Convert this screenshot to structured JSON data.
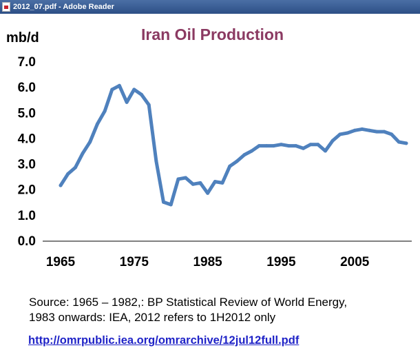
{
  "window": {
    "title": "2012_07.pdf - Adobe Reader"
  },
  "colors": {
    "title_bar": "#3a5e96",
    "chart_title": "#8b3a62",
    "line": "#4f81bd",
    "link": "#1f23c7"
  },
  "icons": {
    "app": "pdf-document-icon"
  },
  "chart_data": {
    "type": "line",
    "title": "Iran Oil  Production",
    "ylabel": "mb/d",
    "xlabel": "",
    "xlim": [
      1965,
      2012
    ],
    "ylim": [
      0,
      7
    ],
    "x_ticks": [
      "1965",
      "1975",
      "1985",
      "1995",
      "2005"
    ],
    "x_tick_values": [
      1965,
      1975,
      1985,
      1995,
      2005
    ],
    "y_ticks": [
      "0.0",
      "1.0",
      "2.0",
      "3.0",
      "4.0",
      "5.0",
      "6.0",
      "7.0"
    ],
    "y_tick_values": [
      0,
      1,
      2,
      3,
      4,
      5,
      6,
      7
    ],
    "grid": false,
    "legend": "none",
    "series": [
      {
        "x": [
          1965,
          1966,
          1967,
          1968,
          1969,
          1970,
          1971,
          1972,
          1973,
          1974,
          1975,
          1976,
          1977,
          1978,
          1979,
          1980,
          1981,
          1982,
          1983,
          1984,
          1985,
          1986,
          1987,
          1988,
          1989,
          1990,
          1991,
          1992,
          1993,
          1994,
          1995,
          1996,
          1997,
          1998,
          1999,
          2000,
          2001,
          2002,
          2003,
          2004,
          2005,
          2006,
          2007,
          2008,
          2009,
          2010,
          2011,
          2012
        ],
        "values": [
          2.15,
          2.6,
          2.85,
          3.4,
          3.85,
          4.55,
          5.05,
          5.9,
          6.05,
          5.4,
          5.9,
          5.7,
          5.3,
          3.1,
          1.5,
          1.4,
          2.4,
          2.45,
          2.2,
          2.25,
          1.85,
          2.3,
          2.25,
          2.9,
          3.1,
          3.35,
          3.5,
          3.7,
          3.7,
          3.7,
          3.75,
          3.7,
          3.7,
          3.6,
          3.75,
          3.75,
          3.5,
          3.9,
          4.15,
          4.2,
          4.3,
          4.35,
          4.3,
          4.25,
          4.25,
          4.15,
          3.85,
          3.8
        ]
      }
    ]
  },
  "footer": {
    "source_line1": "Source: 1965 – 1982,: BP Statistical Review of World Energy,",
    "source_line2": "1983 onwards: IEA, 2012 refers to 1H2012 only",
    "link_text": "http://omrpublic.iea.org/omrarchive/12jul12full.pdf"
  }
}
